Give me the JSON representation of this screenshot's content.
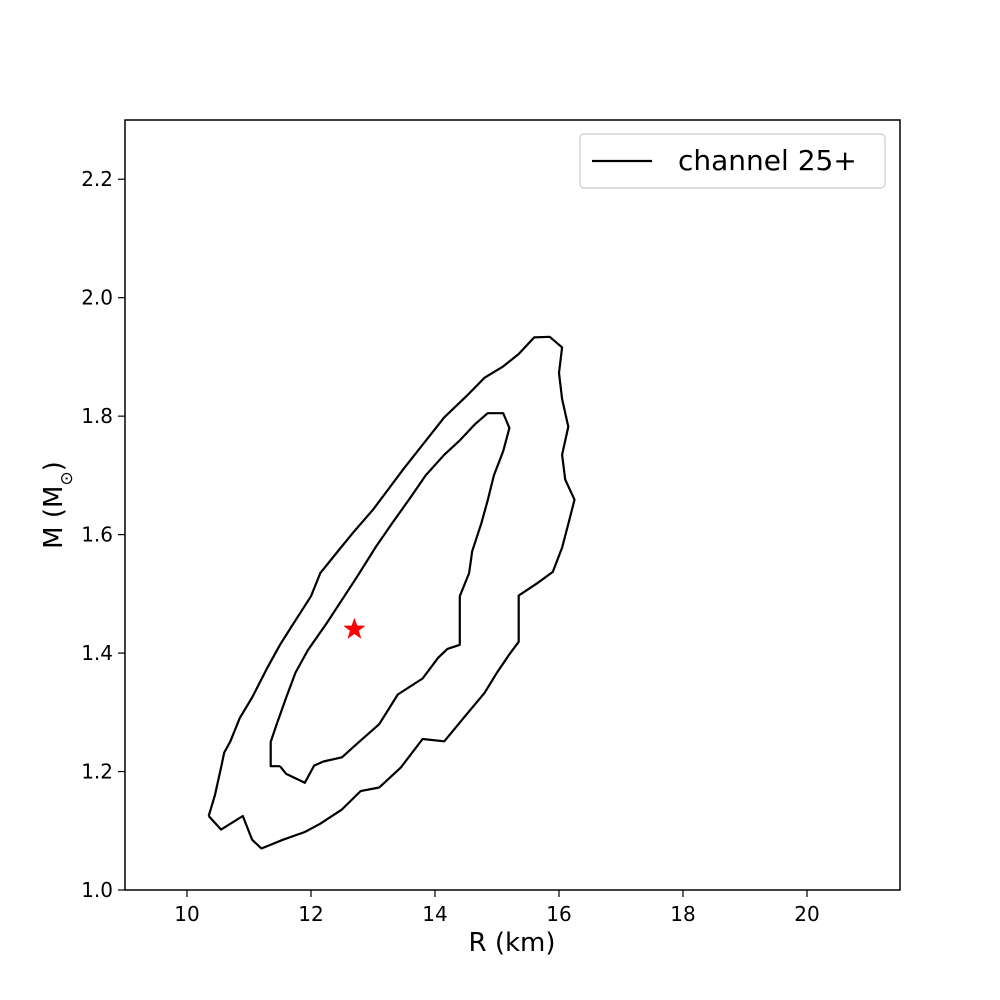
{
  "chart_data": {
    "type": "line",
    "xlabel": "R (km)",
    "ylabel_main": "M (M",
    "ylabel_sub": "⊙",
    "ylabel_close": ")",
    "xlim": [
      9.0,
      21.5
    ],
    "ylim": [
      1.0,
      2.3
    ],
    "xticks": [
      10,
      12,
      14,
      16,
      18,
      20
    ],
    "xtick_labels": [
      "10",
      "12",
      "14",
      "16",
      "18",
      "20"
    ],
    "yticks": [
      1.0,
      1.2,
      1.4,
      1.6,
      1.8,
      2.0,
      2.2
    ],
    "ytick_labels": [
      "1.0",
      "1.2",
      "1.4",
      "1.6",
      "1.8",
      "2.0",
      "2.2"
    ],
    "legend": {
      "label": "channel 25+",
      "location": "top-right"
    },
    "series": [
      {
        "name": "channel 25+",
        "color": "#000000",
        "contours": [
          {
            "level": "outer",
            "points": [
              [
                10.35,
                1.125
              ],
              [
                10.55,
                1.102
              ],
              [
                10.9,
                1.125
              ],
              [
                11.05,
                1.085
              ],
              [
                11.2,
                1.07
              ],
              [
                11.55,
                1.085
              ],
              [
                11.9,
                1.098
              ],
              [
                12.15,
                1.112
              ],
              [
                12.5,
                1.136
              ],
              [
                12.8,
                1.167
              ],
              [
                13.1,
                1.173
              ],
              [
                13.45,
                1.207
              ],
              [
                13.8,
                1.255
              ],
              [
                14.15,
                1.251
              ],
              [
                14.45,
                1.289
              ],
              [
                14.8,
                1.333
              ],
              [
                15.0,
                1.367
              ],
              [
                15.2,
                1.398
              ],
              [
                15.35,
                1.419
              ],
              [
                15.35,
                1.455
              ],
              [
                15.35,
                1.497
              ],
              [
                15.65,
                1.518
              ],
              [
                15.9,
                1.537
              ],
              [
                16.05,
                1.578
              ],
              [
                16.15,
                1.618
              ],
              [
                16.25,
                1.659
              ],
              [
                16.1,
                1.693
              ],
              [
                16.05,
                1.735
              ],
              [
                16.15,
                1.782
              ],
              [
                16.05,
                1.829
              ],
              [
                16.0,
                1.873
              ],
              [
                16.05,
                1.916
              ],
              [
                15.85,
                1.934
              ],
              [
                15.6,
                1.933
              ],
              [
                15.35,
                1.905
              ],
              [
                15.1,
                1.884
              ],
              [
                14.8,
                1.865
              ],
              [
                14.5,
                1.833
              ],
              [
                14.15,
                1.798
              ],
              [
                13.9,
                1.765
              ],
              [
                13.5,
                1.712
              ],
              [
                13.3,
                1.684
              ],
              [
                13.0,
                1.642
              ],
              [
                12.7,
                1.606
              ],
              [
                12.45,
                1.574
              ],
              [
                12.15,
                1.535
              ],
              [
                12.0,
                1.496
              ],
              [
                11.7,
                1.447
              ],
              [
                11.5,
                1.414
              ],
              [
                11.3,
                1.376
              ],
              [
                11.05,
                1.325
              ],
              [
                10.85,
                1.29
              ],
              [
                10.7,
                1.251
              ],
              [
                10.6,
                1.232
              ],
              [
                10.55,
                1.207
              ],
              [
                10.45,
                1.16
              ],
              [
                10.35,
                1.125
              ]
            ]
          },
          {
            "level": "inner",
            "points": [
              [
                11.5,
                1.209
              ],
              [
                11.6,
                1.196
              ],
              [
                11.9,
                1.181
              ],
              [
                12.05,
                1.21
              ],
              [
                12.2,
                1.217
              ],
              [
                12.5,
                1.224
              ],
              [
                12.7,
                1.243
              ],
              [
                13.1,
                1.28
              ],
              [
                13.4,
                1.33
              ],
              [
                13.8,
                1.357
              ],
              [
                14.05,
                1.392
              ],
              [
                14.2,
                1.407
              ],
              [
                14.4,
                1.414
              ],
              [
                14.4,
                1.452
              ],
              [
                14.4,
                1.496
              ],
              [
                14.55,
                1.535
              ],
              [
                14.6,
                1.572
              ],
              [
                14.75,
                1.62
              ],
              [
                14.85,
                1.658
              ],
              [
                14.95,
                1.7
              ],
              [
                15.1,
                1.741
              ],
              [
                15.2,
                1.78
              ],
              [
                15.1,
                1.805
              ],
              [
                14.85,
                1.805
              ],
              [
                14.65,
                1.787
              ],
              [
                14.4,
                1.759
              ],
              [
                14.15,
                1.735
              ],
              [
                13.85,
                1.7
              ],
              [
                13.6,
                1.662
              ],
              [
                13.3,
                1.618
              ],
              [
                13.05,
                1.58
              ],
              [
                12.75,
                1.53
              ],
              [
                12.5,
                1.49
              ],
              [
                12.25,
                1.45
              ],
              [
                11.95,
                1.405
              ],
              [
                11.75,
                1.367
              ],
              [
                11.6,
                1.325
              ],
              [
                11.45,
                1.281
              ],
              [
                11.35,
                1.25
              ],
              [
                11.35,
                1.209
              ],
              [
                11.5,
                1.209
              ]
            ]
          }
        ]
      }
    ],
    "marker": {
      "shape": "star",
      "color": "#ff0000",
      "x": 12.7,
      "y": 1.44
    }
  }
}
